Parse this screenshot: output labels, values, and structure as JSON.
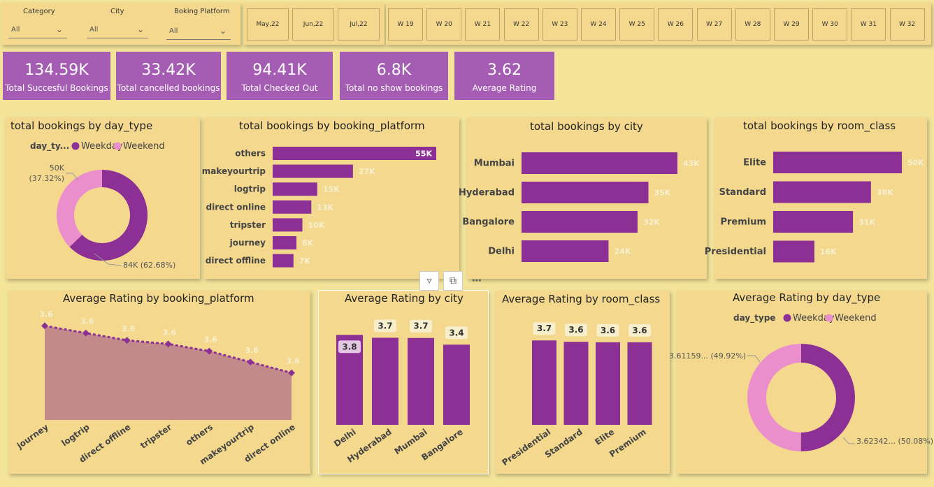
{
  "slicers": {
    "category": {
      "label": "Category",
      "value": "All"
    },
    "city": {
      "label": "City",
      "value": "All"
    },
    "platform": {
      "label": "Boking Platform",
      "value": "All"
    },
    "months": [
      "May,22",
      "Jun,22",
      "Jul,22"
    ],
    "weeks": [
      "W 19",
      "W 20",
      "W 21",
      "W 22",
      "W 23",
      "W 24",
      "W 25",
      "W 26",
      "W 27",
      "W 28",
      "W 29",
      "W 30",
      "W 31",
      "W 32"
    ]
  },
  "kpis": [
    {
      "value": "134.59K",
      "label": "Total Succesful Bookings"
    },
    {
      "value": "33.42K",
      "label": "Total cancelled bookings"
    },
    {
      "value": "94.41K",
      "label": "Total Checked Out"
    },
    {
      "value": "6.8K",
      "label": "Total no show bookings"
    },
    {
      "value": "3.62",
      "label": "Average Rating"
    }
  ],
  "colors": {
    "primary": "#8c3096",
    "secondary": "#ea8fcc",
    "area": "#c28a8a",
    "kpi": "#a45db3"
  },
  "chart_data": [
    {
      "id": "day_type_donut",
      "type": "pie",
      "title": "total bookings by day_type",
      "legend_title": "day_ty...",
      "categories": [
        "Weekday",
        "Weekend"
      ],
      "values": [
        84,
        50
      ],
      "labels": [
        "84K (62.68%)",
        "50K (37.32%)"
      ],
      "label_lines": [
        [
          "84K (62.68%)"
        ],
        [
          "50K",
          "(37.32%)"
        ]
      ]
    },
    {
      "id": "platform_bar",
      "type": "bar",
      "title": "total bookings by booking_platform",
      "categories": [
        "others",
        "makeyourtrip",
        "logtrip",
        "direct online",
        "tripster",
        "journey",
        "direct offline"
      ],
      "values": [
        55,
        27,
        15,
        13,
        10,
        8,
        7
      ],
      "labels": [
        "55K",
        "27K",
        "15K",
        "13K",
        "10K",
        "8K",
        "7K"
      ]
    },
    {
      "id": "city_bar",
      "type": "bar",
      "title": "total bookings by city",
      "categories": [
        "Mumbai",
        "Hyderabad",
        "Bangalore",
        "Delhi"
      ],
      "values": [
        43,
        35,
        32,
        24
      ],
      "labels": [
        "43K",
        "35K",
        "32K",
        "24K"
      ]
    },
    {
      "id": "room_bar",
      "type": "bar",
      "title": "total bookings by room_class",
      "categories": [
        "Elite",
        "Standard",
        "Premium",
        "Presidential"
      ],
      "values": [
        50,
        38,
        31,
        16
      ],
      "labels": [
        "50K",
        "38K",
        "31K",
        "16K"
      ]
    },
    {
      "id": "rating_platform_area",
      "type": "area",
      "title": "Average Rating by booking_platform",
      "categories": [
        "journey",
        "logtrip",
        "direct offline",
        "tripster",
        "others",
        "makeyourtrip",
        "direct online"
      ],
      "values": [
        3.63,
        3.62,
        3.61,
        3.605,
        3.595,
        3.58,
        3.565
      ],
      "labels": [
        "3.6",
        "3.6",
        "3.6",
        "3.6",
        "3.6",
        "3.6",
        "3.6"
      ],
      "ylim": [
        3.5,
        3.64
      ]
    },
    {
      "id": "rating_city_col",
      "type": "bar",
      "title": "Average Rating by city",
      "categories": [
        "Delhi",
        "Hyderabad",
        "Mumbai",
        "Bangalore"
      ],
      "values": [
        3.78,
        3.66,
        3.65,
        3.37
      ],
      "labels": [
        "3.8",
        "3.7",
        "3.7",
        "3.4"
      ],
      "ylim": [
        0,
        4.2
      ]
    },
    {
      "id": "rating_room_col",
      "type": "bar",
      "title": "Average Rating by room_class",
      "categories": [
        "Presidential",
        "Standard",
        "Elite",
        "Premium"
      ],
      "values": [
        3.69,
        3.63,
        3.61,
        3.61
      ],
      "labels": [
        "3.7",
        "3.6",
        "3.6",
        "3.6"
      ],
      "ylim": [
        0,
        4.4
      ]
    },
    {
      "id": "rating_day_donut",
      "type": "pie",
      "title": "Average Rating by day_type",
      "legend_title": "day_type",
      "categories": [
        "Weekday",
        "Weekend"
      ],
      "values": [
        50.08,
        49.92
      ],
      "labels": [
        "3.62342... (50.08%)",
        "3.61159... (49.92%)"
      ],
      "label_lines": [
        [
          "3.62342... (50.08%)"
        ],
        [
          "3.61159... (49.92%)"
        ]
      ]
    }
  ]
}
